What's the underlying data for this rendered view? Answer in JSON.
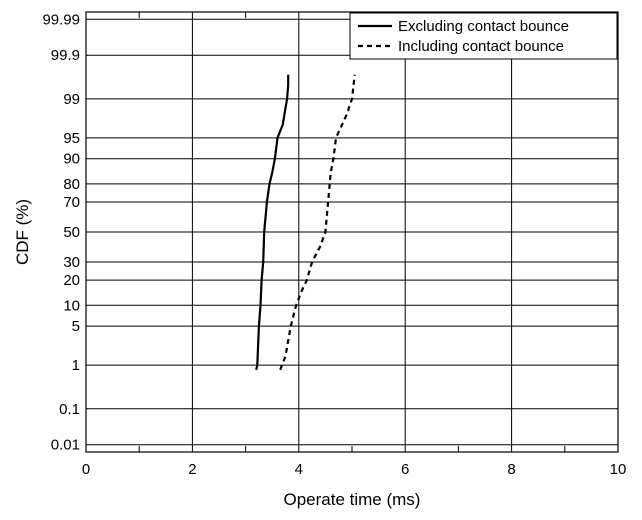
{
  "chart_data": {
    "type": "line",
    "title": "",
    "xlabel": "Operate time (ms)",
    "ylabel": "CDF (%)",
    "xlim": [
      0,
      10
    ],
    "x_scale": "linear",
    "y_scale": "normal-probability",
    "ylim": [
      0.006,
      99.994
    ],
    "grid": true,
    "legend_position": "top-right",
    "x_ticks": [
      0,
      2,
      4,
      6,
      8,
      10
    ],
    "x_tick_labels": [
      "0",
      "2",
      "4",
      "6",
      "8",
      "10"
    ],
    "y_ticks": [
      0.01,
      0.1,
      1,
      5,
      10,
      20,
      30,
      50,
      70,
      80,
      90,
      95,
      99,
      99.9,
      99.99
    ],
    "y_tick_labels": [
      "0.01",
      "0.1",
      "1",
      "5",
      "10",
      "20",
      "30",
      "50",
      "70",
      "80",
      "90",
      "95",
      "99",
      "99.9",
      "99.99"
    ],
    "series": [
      {
        "name": "Excluding contact bounce",
        "style": "solid",
        "x": [
          3.2,
          3.22,
          3.25,
          3.28,
          3.3,
          3.33,
          3.35,
          3.4,
          3.45,
          3.5,
          3.55,
          3.6,
          3.7,
          3.75,
          3.78,
          3.8,
          3.8
        ],
        "y": [
          0.8,
          1,
          5,
          10,
          20,
          30,
          50,
          70,
          80,
          85,
          90,
          95,
          97,
          98.5,
          99,
          99.5,
          99.7
        ]
      },
      {
        "name": "Including contact bounce",
        "style": "dashed",
        "x": [
          3.65,
          3.75,
          3.85,
          3.95,
          4.05,
          4.15,
          4.25,
          4.4,
          4.5,
          4.55,
          4.6,
          4.65,
          4.7,
          4.9,
          5.0,
          5.05
        ],
        "y": [
          0.8,
          1.5,
          5,
          10,
          15,
          20,
          30,
          40,
          50,
          70,
          85,
          90,
          95,
          98,
          99,
          99.7
        ]
      }
    ],
    "colors": {
      "line": "#000000",
      "grid": "#000000",
      "background": "#ffffff"
    }
  }
}
